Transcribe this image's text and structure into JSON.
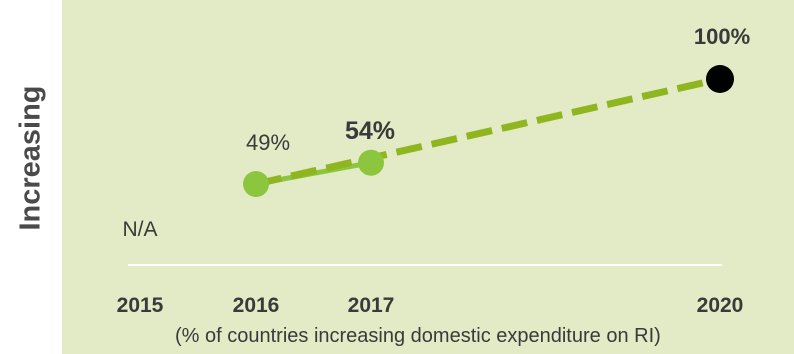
{
  "chart_data": {
    "type": "line",
    "ylabel": "Increasing",
    "xlabel": "(% of countries increasing domestic expenditure on RI)",
    "x_ticks": [
      "2015",
      "2016",
      "2017",
      "2020"
    ],
    "ylim": [
      0,
      100
    ],
    "series": [
      {
        "style": "solid",
        "color": "#8cc63f",
        "points": [
          {
            "x": 2016,
            "y": 49,
            "label": "49%",
            "bold": false
          },
          {
            "x": 2017,
            "y": 54,
            "label": "54%",
            "bold": true
          }
        ]
      },
      {
        "style": "dashed",
        "color": "#8fb51f",
        "points": [
          {
            "x": 2016,
            "y": 49
          },
          {
            "x": 2020,
            "y": 100,
            "label": "100%",
            "bold": true
          }
        ]
      }
    ],
    "annotations": [
      {
        "x": 2015,
        "text": "N/A"
      }
    ],
    "colors": {
      "background": "#e3eac6",
      "actual": "#8cc63f",
      "target_line": "#8fb51f",
      "target_marker": "#000000"
    }
  }
}
